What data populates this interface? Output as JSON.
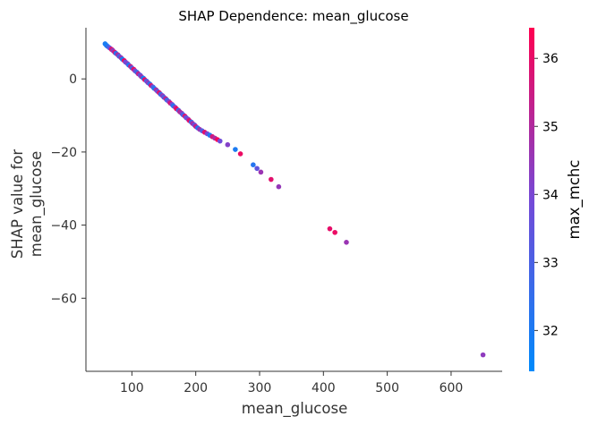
{
  "chart_data": {
    "type": "scatter",
    "title": "SHAP Dependence: mean_glucose",
    "xlabel": "mean_glucose",
    "ylabel_lines": [
      "SHAP value for",
      "mean_glucose"
    ],
    "xlim": [
      28,
      680
    ],
    "ylim": [
      -80,
      14
    ],
    "xticks": [
      100,
      200,
      300,
      400,
      500,
      600
    ],
    "yticks": [
      0,
      -20,
      -40,
      -60
    ],
    "ytick_labels": [
      "0",
      "−20",
      "−40",
      "−60"
    ],
    "colorbar": {
      "label": "max_mchc",
      "range": [
        31.4,
        36.45
      ],
      "ticks": [
        32,
        33,
        34,
        35,
        36
      ],
      "colors": [
        "#008afb",
        "#7549d7",
        "#ff0050"
      ]
    },
    "points": [
      {
        "x": 58,
        "y": 9.6,
        "c": 32.0
      },
      {
        "x": 60,
        "y": 9.2,
        "c": 31.8
      },
      {
        "x": 62,
        "y": 8.9,
        "c": 32.3
      },
      {
        "x": 65,
        "y": 8.5,
        "c": 33.5
      },
      {
        "x": 68,
        "y": 8.1,
        "c": 36.0
      },
      {
        "x": 70,
        "y": 7.8,
        "c": 34.5
      },
      {
        "x": 73,
        "y": 7.3,
        "c": 35.8
      },
      {
        "x": 75,
        "y": 7.0,
        "c": 32.5
      },
      {
        "x": 78,
        "y": 6.6,
        "c": 35.0
      },
      {
        "x": 80,
        "y": 6.2,
        "c": 33.0
      },
      {
        "x": 83,
        "y": 5.8,
        "c": 34.8
      },
      {
        "x": 85,
        "y": 5.4,
        "c": 31.9
      },
      {
        "x": 88,
        "y": 5.0,
        "c": 36.2
      },
      {
        "x": 90,
        "y": 4.6,
        "c": 33.8
      },
      {
        "x": 93,
        "y": 4.2,
        "c": 34.2
      },
      {
        "x": 95,
        "y": 3.8,
        "c": 32.2
      },
      {
        "x": 98,
        "y": 3.4,
        "c": 35.5
      },
      {
        "x": 100,
        "y": 3.0,
        "c": 33.2
      },
      {
        "x": 103,
        "y": 2.6,
        "c": 36.1
      },
      {
        "x": 105,
        "y": 2.2,
        "c": 34.0
      },
      {
        "x": 108,
        "y": 1.8,
        "c": 32.6
      },
      {
        "x": 110,
        "y": 1.4,
        "c": 35.2
      },
      {
        "x": 113,
        "y": 1.0,
        "c": 33.6
      },
      {
        "x": 115,
        "y": 0.6,
        "c": 34.6
      },
      {
        "x": 118,
        "y": 0.2,
        "c": 31.7
      },
      {
        "x": 120,
        "y": -0.2,
        "c": 35.9
      },
      {
        "x": 123,
        "y": -0.6,
        "c": 33.1
      },
      {
        "x": 125,
        "y": -1.0,
        "c": 34.3
      },
      {
        "x": 128,
        "y": -1.4,
        "c": 32.4
      },
      {
        "x": 130,
        "y": -1.8,
        "c": 35.6
      },
      {
        "x": 133,
        "y": -2.2,
        "c": 33.4
      },
      {
        "x": 135,
        "y": -2.6,
        "c": 32.1
      },
      {
        "x": 138,
        "y": -3.0,
        "c": 34.9
      },
      {
        "x": 140,
        "y": -3.4,
        "c": 33.7
      },
      {
        "x": 143,
        "y": -3.8,
        "c": 36.0
      },
      {
        "x": 145,
        "y": -4.2,
        "c": 32.8
      },
      {
        "x": 148,
        "y": -4.6,
        "c": 34.4
      },
      {
        "x": 150,
        "y": -5.0,
        "c": 33.3
      },
      {
        "x": 153,
        "y": -5.4,
        "c": 35.3
      },
      {
        "x": 155,
        "y": -5.8,
        "c": 32.7
      },
      {
        "x": 158,
        "y": -6.2,
        "c": 34.1
      },
      {
        "x": 160,
        "y": -6.6,
        "c": 35.7
      },
      {
        "x": 163,
        "y": -7.0,
        "c": 33.9
      },
      {
        "x": 165,
        "y": -7.4,
        "c": 32.2
      },
      {
        "x": 168,
        "y": -7.8,
        "c": 34.7
      },
      {
        "x": 170,
        "y": -8.2,
        "c": 36.2
      },
      {
        "x": 173,
        "y": -8.6,
        "c": 33.0
      },
      {
        "x": 175,
        "y": -9.0,
        "c": 35.1
      },
      {
        "x": 178,
        "y": -9.4,
        "c": 34.5
      },
      {
        "x": 180,
        "y": -9.8,
        "c": 32.9
      },
      {
        "x": 183,
        "y": -10.2,
        "c": 35.8
      },
      {
        "x": 185,
        "y": -10.6,
        "c": 33.5
      },
      {
        "x": 188,
        "y": -11.0,
        "c": 34.3
      },
      {
        "x": 190,
        "y": -11.4,
        "c": 36.0
      },
      {
        "x": 193,
        "y": -11.8,
        "c": 32.6
      },
      {
        "x": 195,
        "y": -12.2,
        "c": 34.8
      },
      {
        "x": 198,
        "y": -12.6,
        "c": 33.6
      },
      {
        "x": 200,
        "y": -13.0,
        "c": 35.4
      },
      {
        "x": 203,
        "y": -13.4,
        "c": 32.3
      },
      {
        "x": 206,
        "y": -13.8,
        "c": 34.6
      },
      {
        "x": 210,
        "y": -14.2,
        "c": 33.2
      },
      {
        "x": 214,
        "y": -14.6,
        "c": 35.9
      },
      {
        "x": 218,
        "y": -15.0,
        "c": 34.0
      },
      {
        "x": 222,
        "y": -15.4,
        "c": 32.0
      },
      {
        "x": 226,
        "y": -15.8,
        "c": 35.6
      },
      {
        "x": 230,
        "y": -16.2,
        "c": 34.9
      },
      {
        "x": 234,
        "y": -16.6,
        "c": 36.3
      },
      {
        "x": 238,
        "y": -17.0,
        "c": 33.8
      },
      {
        "x": 250,
        "y": -18.0,
        "c": 34.2
      },
      {
        "x": 262,
        "y": -19.3,
        "c": 32.0
      },
      {
        "x": 270,
        "y": -20.5,
        "c": 36.1
      },
      {
        "x": 290,
        "y": -23.5,
        "c": 32.2
      },
      {
        "x": 296,
        "y": -24.5,
        "c": 33.5
      },
      {
        "x": 302,
        "y": -25.5,
        "c": 34.6
      },
      {
        "x": 318,
        "y": -27.5,
        "c": 35.9
      },
      {
        "x": 330,
        "y": -29.5,
        "c": 34.5
      },
      {
        "x": 410,
        "y": -41.0,
        "c": 36.0
      },
      {
        "x": 418,
        "y": -42.0,
        "c": 36.1
      },
      {
        "x": 436,
        "y": -44.7,
        "c": 34.6
      },
      {
        "x": 650,
        "y": -75.5,
        "c": 34.4
      }
    ]
  }
}
